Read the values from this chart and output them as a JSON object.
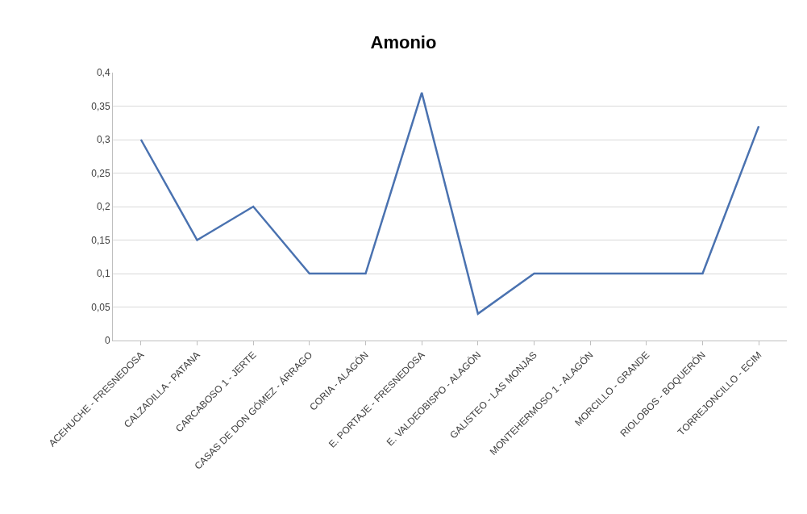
{
  "chart_data": {
    "type": "line",
    "title": "Amonio",
    "categories": [
      "ACEHUCHE - FRESNEDOSA",
      "CALZADILLA - PATANA",
      "CARCABOSO 1 - JERTE",
      "CASAS DE DON GÓMEZ - ÁRRAGO",
      "CORIA - ALAGÓN",
      "E. PORTAJE - FRESNEDOSA",
      "E. VALDEOBISPO - ALAGÓN",
      "GALISTEO - LAS MONJAS",
      "MONTEHERMOSO 1 - ALAGÓN",
      "MORCILLO - GRANDE",
      "RIOLOBOS - BOQUERÓN",
      "TORREJONCILLO - ECIM"
    ],
    "series": [
      {
        "color": "#4a72b0",
        "values": [
          0.3,
          0.15,
          0.2,
          0.1,
          0.1,
          0.37,
          0.04,
          0.1,
          0.1,
          0.1,
          0.1,
          0.32
        ]
      }
    ],
    "ylim": [
      0,
      0.4
    ],
    "yticks": [
      0,
      {
        "value": 0.05,
        "label": "0,05"
      },
      {
        "value": 0.1,
        "label": "0,1"
      },
      {
        "value": 0.15,
        "label": "0,15"
      },
      {
        "value": 0.2,
        "label": "0,2"
      },
      {
        "value": 0.25,
        "label": "0,25"
      },
      {
        "value": 0.3,
        "label": "0,3"
      },
      {
        "value": 0.35,
        "label": "0,35"
      },
      {
        "value": 0.4,
        "label": "0,4"
      }
    ],
    "grid": "y",
    "marker": "none",
    "line_style": "solid"
  }
}
